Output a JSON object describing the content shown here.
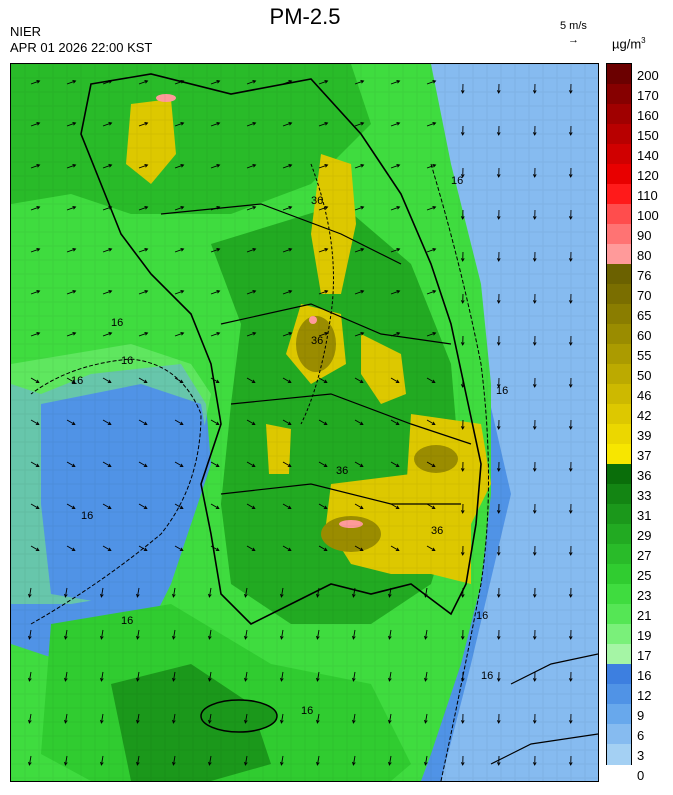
{
  "header": {
    "title": "PM-2.5",
    "agency": "NIER",
    "timestamp": "APR 01 2026 22:00 KST"
  },
  "wind_reference": {
    "label": "5 m/s",
    "arrow": "→"
  },
  "colorbar": {
    "unit_base": "µg/m",
    "unit_exp": "3",
    "labels": [
      "200",
      "170",
      "160",
      "150",
      "140",
      "120",
      "110",
      "100",
      "90",
      "80",
      "76",
      "70",
      "65",
      "60",
      "55",
      "50",
      "46",
      "42",
      "39",
      "37",
      "36",
      "33",
      "31",
      "29",
      "27",
      "25",
      "23",
      "21",
      "19",
      "17",
      "16",
      "12",
      "9",
      "6",
      "3",
      "0"
    ],
    "colors": [
      "#6b0000",
      "#860000",
      "#a00000",
      "#b80000",
      "#d00000",
      "#e80000",
      "#ff1a1a",
      "#ff4d4d",
      "#ff7373",
      "#ff9a9a",
      "#6b6100",
      "#7a6e00",
      "#8a7d00",
      "#9a8c00",
      "#ab9b00",
      "#bcaa00",
      "#cdb900",
      "#ddc800",
      "#ebd700",
      "#f7e600",
      "#0a6e0a",
      "#138513",
      "#1b981b",
      "#22aa22",
      "#29bb29",
      "#30cc30",
      "#3fdc3f",
      "#55e655",
      "#7af07a",
      "#a5f5a5",
      "#3d7fe0",
      "#5093e6",
      "#68a8ec",
      "#86bbf0",
      "#a4d0f3"
    ]
  },
  "map": {
    "contour_labels": [
      "16",
      "16",
      "16",
      "16",
      "16",
      "16",
      "16",
      "16",
      "16",
      "16",
      "36",
      "36",
      "36",
      "36"
    ],
    "wind_field": {
      "north_direction": "east-northeast",
      "east_sea_direction": "south",
      "south_direction": "south-southwest"
    }
  }
}
